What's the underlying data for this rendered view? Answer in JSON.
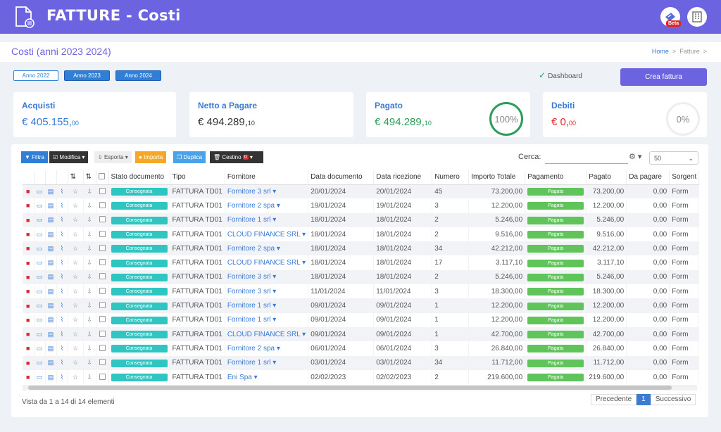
{
  "header": {
    "title": "FATTURE - Costi",
    "beta": "Beta"
  },
  "subbar": {
    "page_title": "Costi (anni 2023 2024)",
    "crumb_home": "Home",
    "crumb_sep": ">",
    "crumb_current": "Fatture"
  },
  "years": [
    "Anno 2022",
    "Anno 2023",
    "Anno 2024"
  ],
  "dashboard_label": "Dashboard",
  "create_label": "Crea fattura",
  "cards": [
    {
      "label": "Acquisti",
      "value": "€ 405.155,",
      "cents": "00",
      "color": "#3b7bd4"
    },
    {
      "label": "Netto a Pagare",
      "value": "€ 494.289,",
      "cents": "10",
      "color": "#3b7bd4"
    },
    {
      "label": "Pagato",
      "value": "€ 494.289,",
      "cents": "10",
      "color": "#2e9c5a",
      "ring": "100%"
    },
    {
      "label": "Debiti",
      "value": "€ 0,",
      "cents": "00",
      "color": "#e0262b",
      "ring": "0%"
    }
  ],
  "toolbar": {
    "filtra": "Filtra",
    "modifica": "Modifica",
    "esporta": "Esporta",
    "importa": "Importa",
    "duplica": "Duplica",
    "cestino": "Cestino",
    "cestino_count": "0"
  },
  "search": {
    "label": "Cerca:",
    "perpage": "50"
  },
  "columns": [
    "Stato documento",
    "Tipo",
    "Fornitore",
    "Data documento",
    "Data ricezione",
    "Numero",
    "Importo Totale",
    "Pagamento",
    "Pagato",
    "Da pagare",
    "Sorgent"
  ],
  "rows": [
    [
      "Consegnata",
      "FATTURA TD01",
      "Fornitore 3 srl",
      "20/01/2024",
      "20/01/2024",
      "45",
      "73.200,00",
      "Pagata",
      "73.200,00",
      "0,00",
      "Form"
    ],
    [
      "Consegnata",
      "FATTURA TD01",
      "Fornitore 2 spa",
      "19/01/2024",
      "19/01/2024",
      "3",
      "12.200,00",
      "Pagata",
      "12.200,00",
      "0,00",
      "Form"
    ],
    [
      "Consegnata",
      "FATTURA TD01",
      "Fornitore 1 srl",
      "18/01/2024",
      "18/01/2024",
      "2",
      "5.246,00",
      "Pagata",
      "5.246,00",
      "0,00",
      "Form"
    ],
    [
      "Consegnata",
      "FATTURA TD01",
      "CLOUD FINANCE SRL",
      "18/01/2024",
      "18/01/2024",
      "2",
      "9.516,00",
      "Pagata",
      "9.516,00",
      "0,00",
      "Form"
    ],
    [
      "Consegnata",
      "FATTURA TD01",
      "Fornitore 2 spa",
      "18/01/2024",
      "18/01/2024",
      "34",
      "42.212,00",
      "Pagata",
      "42.212,00",
      "0,00",
      "Form"
    ],
    [
      "Consegnata",
      "FATTURA TD01",
      "CLOUD FINANCE SRL",
      "18/01/2024",
      "18/01/2024",
      "17",
      "3.117,10",
      "Pagata",
      "3.117,10",
      "0,00",
      "Form"
    ],
    [
      "Consegnata",
      "FATTURA TD01",
      "Fornitore 3 srl",
      "18/01/2024",
      "18/01/2024",
      "2",
      "5.246,00",
      "Pagata",
      "5.246,00",
      "0,00",
      "Form"
    ],
    [
      "Consegnata",
      "FATTURA TD01",
      "Fornitore 3 srl",
      "11/01/2024",
      "11/01/2024",
      "3",
      "18.300,00",
      "Pagata",
      "18.300,00",
      "0,00",
      "Form"
    ],
    [
      "Consegnata",
      "FATTURA TD01",
      "Fornitore 1 srl",
      "09/01/2024",
      "09/01/2024",
      "1",
      "12.200,00",
      "Pagata",
      "12.200,00",
      "0,00",
      "Form"
    ],
    [
      "Consegnata",
      "FATTURA TD01",
      "Fornitore 1 srl",
      "09/01/2024",
      "09/01/2024",
      "1",
      "12.200,00",
      "Pagata",
      "12.200,00",
      "0,00",
      "Form"
    ],
    [
      "Consegnata",
      "FATTURA TD01",
      "CLOUD FINANCE SRL",
      "09/01/2024",
      "09/01/2024",
      "1",
      "42.700,00",
      "Pagata",
      "42.700,00",
      "0,00",
      "Form"
    ],
    [
      "Consegnata",
      "FATTURA TD01",
      "Fornitore 2 spa",
      "06/01/2024",
      "06/01/2024",
      "3",
      "26.840,00",
      "Pagata",
      "26.840,00",
      "0,00",
      "Form"
    ],
    [
      "Consegnata",
      "FATTURA TD01",
      "Fornitore 1 srl",
      "03/01/2024",
      "03/01/2024",
      "34",
      "11.712,00",
      "Pagata",
      "11.712,00",
      "0,00",
      "Form"
    ],
    [
      "Consegnata",
      "FATTURA TD01",
      "Eni Spa",
      "02/02/2023",
      "02/02/2023",
      "2",
      "219.600,00",
      "Pagata",
      "219.600,00",
      "0,00",
      "Form"
    ]
  ],
  "footer": {
    "info": "Vista da 1 a 14 di 14 elementi",
    "prev": "Precedente",
    "page": "1",
    "next": "Successivo"
  }
}
